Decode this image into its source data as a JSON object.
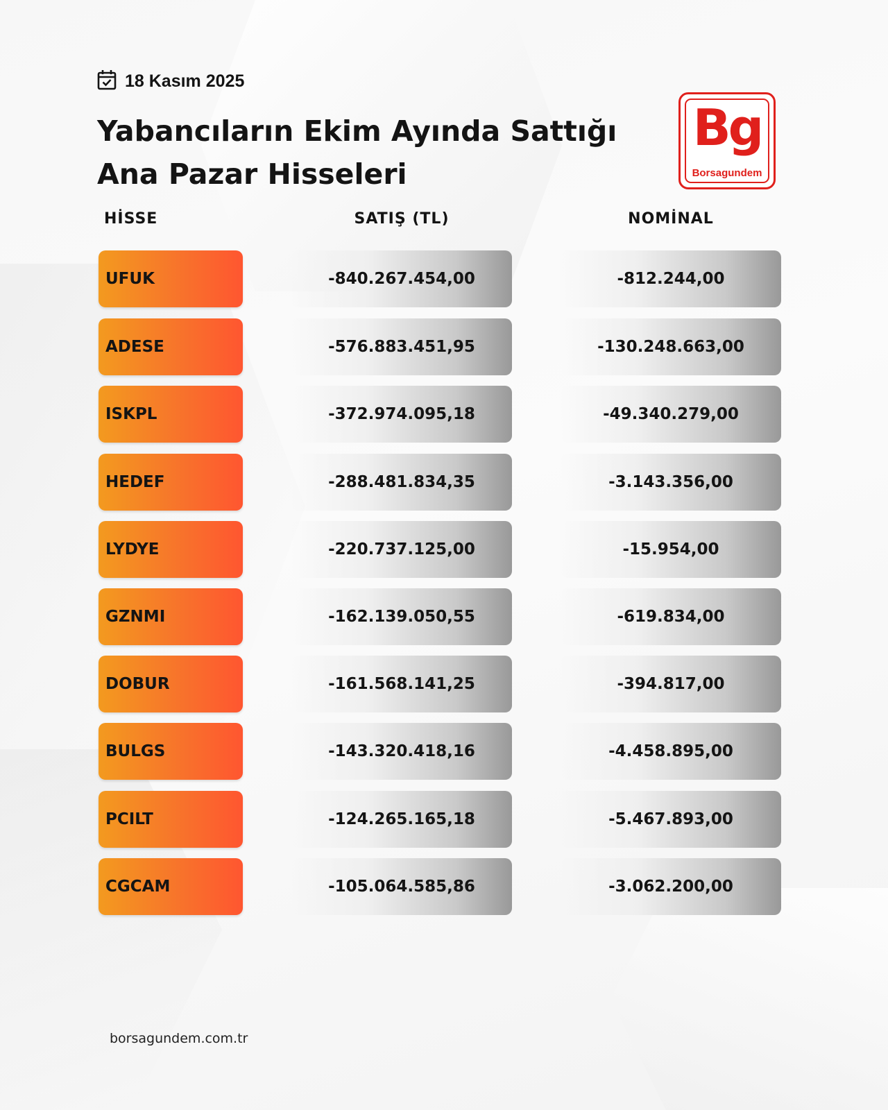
{
  "header": {
    "date": "18 Kasım 2025",
    "title_line1": "Yabancıların Ekim Ayında Sattığı",
    "title_line2": "Ana Pazar Hisseleri"
  },
  "logo": {
    "mark": "Bg",
    "wordmark": "Borsagundem",
    "color": "#e0201c"
  },
  "table": {
    "columns": [
      "HİSSE",
      "SATIŞ (TL)",
      "NOMİNAL"
    ],
    "rows": [
      {
        "ticker": "UFUK",
        "satis": "-840.267.454,00",
        "nominal": "-812.244,00"
      },
      {
        "ticker": "ADESE",
        "satis": "-576.883.451,95",
        "nominal": "-130.248.663,00"
      },
      {
        "ticker": "ISKPL",
        "satis": "-372.974.095,18",
        "nominal": "-49.340.279,00"
      },
      {
        "ticker": "HEDEF",
        "satis": "-288.481.834,35",
        "nominal": "-3.143.356,00"
      },
      {
        "ticker": "LYDYE",
        "satis": "-220.737.125,00",
        "nominal": "-15.954,00"
      },
      {
        "ticker": "GZNMI",
        "satis": "-162.139.050,55",
        "nominal": "-619.834,00"
      },
      {
        "ticker": "DOBUR",
        "satis": "-161.568.141,25",
        "nominal": "-394.817,00"
      },
      {
        "ticker": "BULGS",
        "satis": "-143.320.418,16",
        "nominal": "-4.458.895,00"
      },
      {
        "ticker": "PCILT",
        "satis": "-124.265.165,18",
        "nominal": "-5.467.893,00"
      },
      {
        "ticker": "CGCAM",
        "satis": "-105.064.585,86",
        "nominal": "-3.062.200,00"
      }
    ]
  },
  "footer": {
    "url": "borsagundem.com.tr"
  },
  "colors": {
    "ticker_gradient_start": "#f39a1f",
    "ticker_gradient_end": "#ff5630",
    "value_gradient_end": "#999999",
    "text": "#141414"
  },
  "icons": {
    "date": "calendar-check-icon"
  }
}
